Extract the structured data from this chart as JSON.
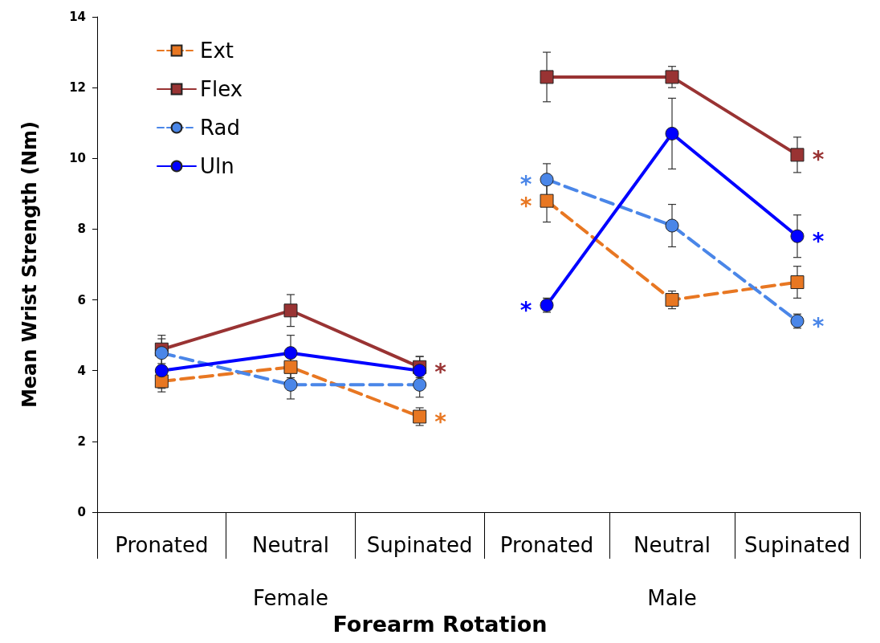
{
  "chart_data": [
    {
      "type": "line",
      "ylabel": "Mean Wrist Strength (Nm)",
      "xlabel": "Female",
      "categories": [
        "Pronated",
        "Neutral",
        "Supinated"
      ],
      "ylim": [
        0,
        14
      ],
      "yticks": [
        0,
        2,
        4,
        6,
        8,
        10,
        12,
        14
      ],
      "grid": false,
      "legend": "top left",
      "series": [
        {
          "name": "Ext",
          "color": "#e87722",
          "marker": "square",
          "line_style": "dashed",
          "values": [
            3.7,
            4.1,
            2.7
          ],
          "errors": [
            0.3,
            0.3,
            0.25
          ]
        },
        {
          "name": "Flex",
          "color": "#993333",
          "marker": "square",
          "line_style": "solid",
          "values": [
            4.6,
            5.7,
            4.1
          ],
          "errors": [
            0.4,
            0.45,
            0.3
          ]
        },
        {
          "name": "Rad",
          "color": "#4a86e8",
          "marker": "circle",
          "line_style": "dashed",
          "values": [
            4.5,
            3.6,
            3.6
          ],
          "errors": [
            0.4,
            0.4,
            0.35
          ]
        },
        {
          "name": "Uln",
          "color": "#0000ff",
          "marker": "circle",
          "line_style": "solid",
          "values": [
            4.0,
            4.5,
            4.0
          ],
          "errors": [
            0.5,
            0.5,
            0.4
          ]
        }
      ],
      "annotations": [
        {
          "text": "*",
          "x": "Supinated",
          "y": 4.1
        },
        {
          "text": "*",
          "x": "Supinated",
          "y": 2.7
        }
      ]
    },
    {
      "type": "line",
      "xlabel": "Male",
      "categories": [
        "Pronated",
        "Neutral",
        "Supinated"
      ],
      "ylim": [
        0,
        14
      ],
      "yticks": [
        0,
        2,
        4,
        6,
        8,
        10,
        12,
        14
      ],
      "grid": false,
      "tick_labels": "x",
      "series": [
        {
          "color": "#e87722",
          "marker": "square",
          "line_style": "dashed",
          "values": [
            8.8,
            6.0,
            6.5
          ],
          "errors": [
            0.6,
            0.25,
            0.45
          ]
        },
        {
          "color": "#993333",
          "marker": "square",
          "line_style": "solid",
          "values": [
            12.3,
            12.3,
            10.1
          ],
          "errors": [
            0.7,
            0.3,
            0.5
          ]
        },
        {
          "color": "#4a86e8",
          "marker": "circle",
          "line_style": "dashed",
          "values": [
            9.4,
            8.1,
            5.4
          ],
          "errors": [
            0.45,
            0.6,
            0.2
          ]
        },
        {
          "color": "#0000ff",
          "marker": "circle",
          "line_style": "solid",
          "values": [
            5.85,
            10.7,
            7.8
          ],
          "errors": [
            0.2,
            1.0,
            0.6
          ]
        }
      ],
      "annotations": [
        "Forearm Rotation",
        {
          "text": "*",
          "x": "Pronated",
          "y": 9.4
        },
        {
          "text": "*",
          "x": "Pronated",
          "y": 8.8
        },
        {
          "text": "*",
          "x": "Pronated",
          "y": 5.85
        },
        {
          "text": "*",
          "x": "Supinated",
          "y": 10.1
        },
        {
          "text": "*",
          "x": "Supinated",
          "y": 7.8
        },
        {
          "text": "*",
          "x": "Supinated",
          "y": 5.4
        }
      ]
    }
  ]
}
